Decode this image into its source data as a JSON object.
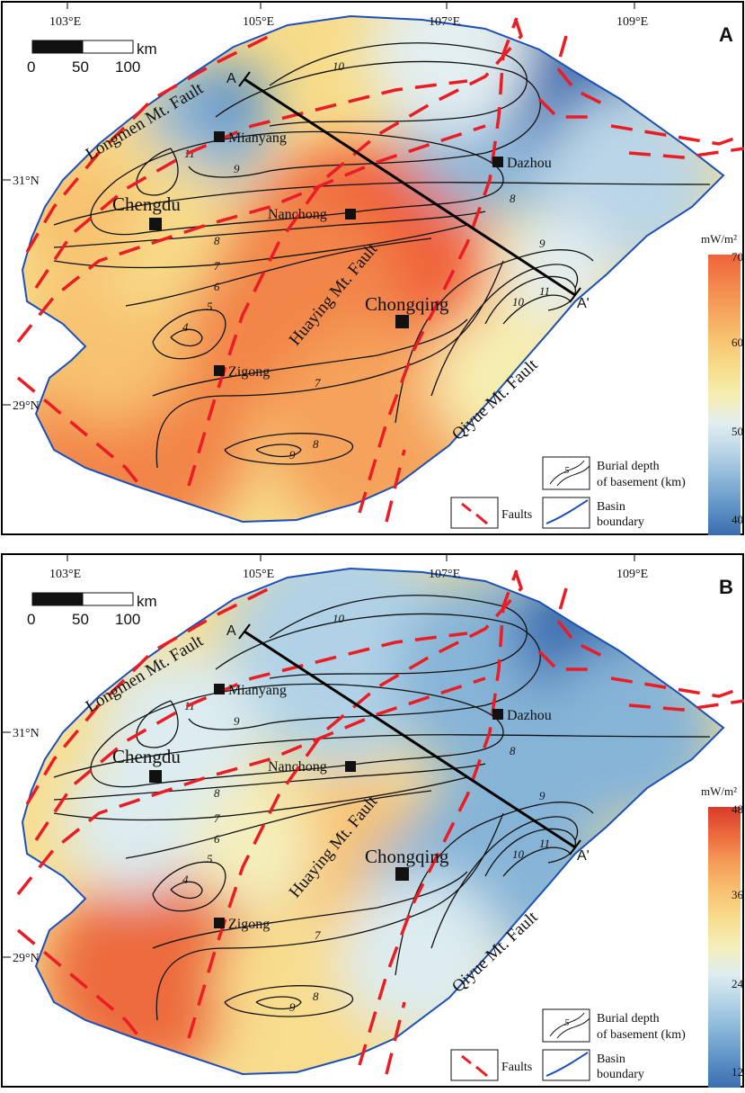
{
  "panels": [
    {
      "id": "A",
      "label": "A",
      "unit": "mW/m²",
      "ramp": [
        "#f0623a",
        "#f2854a",
        "#f5a35c",
        "#f7c270",
        "#f7dc8a",
        "#f6eeb0",
        "#e3eef0",
        "#bad5e7",
        "#8bb6d8",
        "#5f93c6",
        "#3a6cb0"
      ],
      "legend_ticks": [
        "70",
        "60",
        "50",
        "40"
      ]
    },
    {
      "id": "B",
      "label": "B",
      "unit": "mW/m²",
      "ramp": [
        "#d93b2a",
        "#ec6a3e",
        "#f59d58",
        "#f8c271",
        "#f8dd8e",
        "#f4efbc",
        "#dcecf0",
        "#b1d2e6",
        "#86b4d7",
        "#5c91c5",
        "#3b6eb1"
      ],
      "legend_ticks": [
        "48",
        "36",
        "24",
        "12"
      ]
    }
  ],
  "lon_ticks": [
    "103°E",
    "105°E",
    "107°E",
    "109°E"
  ],
  "lat_ticks": [
    "31°N",
    "29°N"
  ],
  "scale_bar": {
    "unit": "km",
    "labels": [
      "0",
      "50",
      "100"
    ]
  },
  "cities": [
    "Mianyang",
    "Dazhou",
    "Chengdu",
    "Nanchong",
    "Chongqing",
    "Zigong"
  ],
  "faults": [
    "Longmen Mt. Fault",
    "Huaying Mt. Fault",
    "Qiyue Mt. Fault"
  ],
  "profile": {
    "start": "A",
    "end": "A'"
  },
  "contour_labels": [
    "10",
    "11",
    "9",
    "8",
    "7",
    "6",
    "5",
    "4",
    "7",
    "8",
    "9",
    "8",
    "9",
    "10",
    "11"
  ],
  "legend": {
    "burial_line1": "Burial depth",
    "burial_line2": "of basement (km)",
    "burial_sample": "5",
    "faults": "Faults",
    "basin_line1": "Basin",
    "basin_line2": "boundary"
  }
}
